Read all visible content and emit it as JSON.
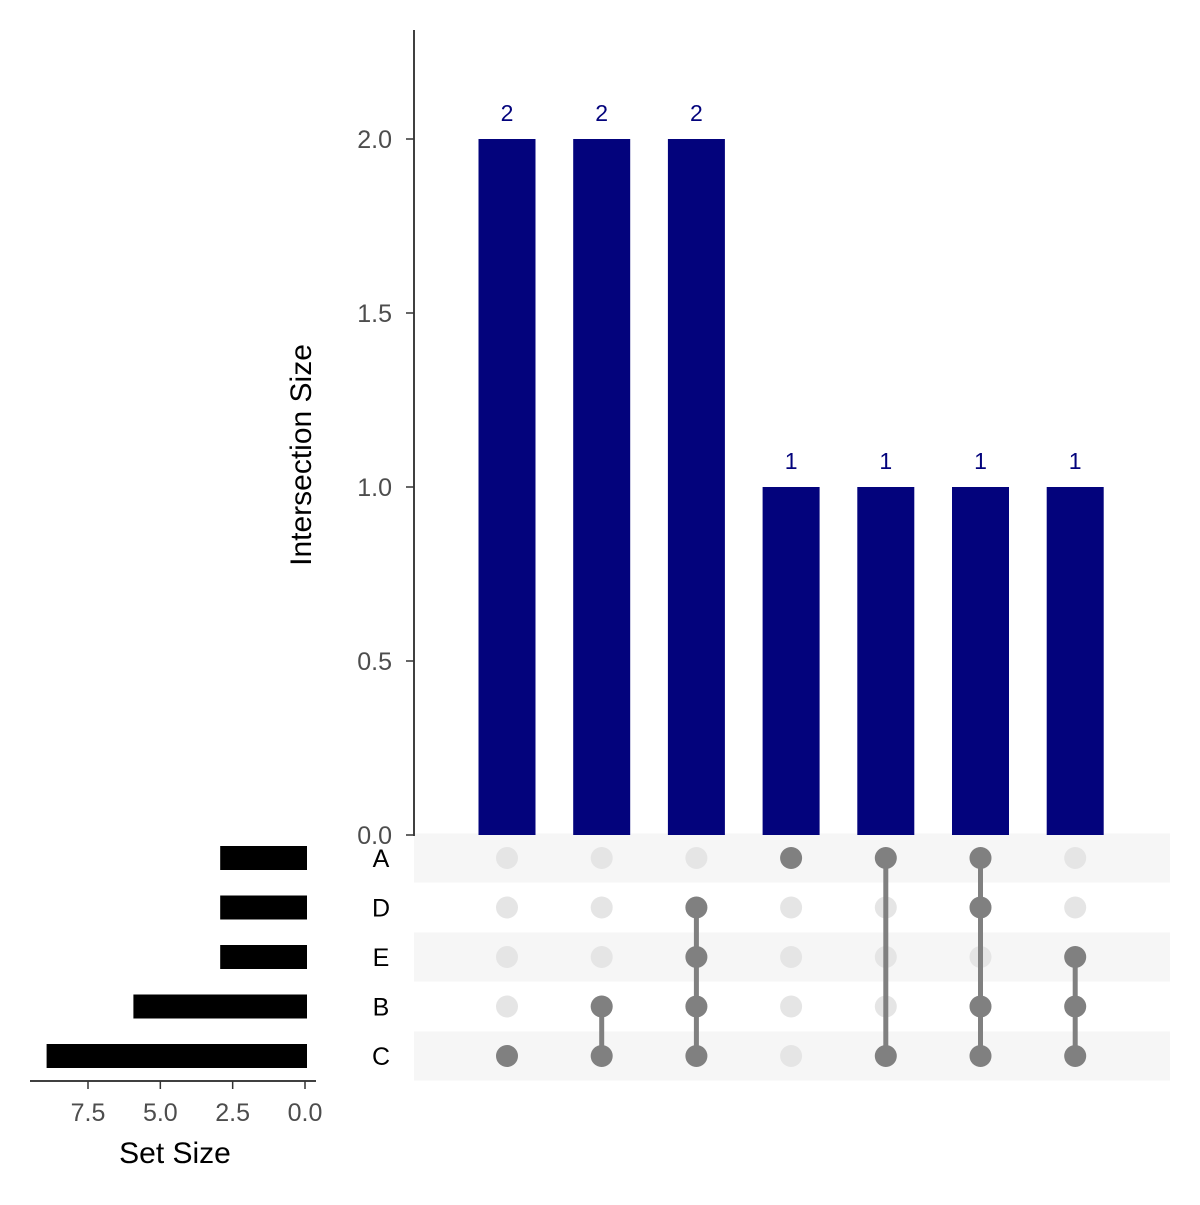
{
  "chart_data": {
    "type": "bar",
    "subtype": "upset",
    "ylabel": "Intersection Size",
    "ylim": [
      0,
      2.3
    ],
    "yticks": [
      "0.0",
      "0.5",
      "1.0",
      "1.5",
      "2.0"
    ],
    "ytick_values": [
      0,
      0.5,
      1.0,
      1.5,
      2.0
    ],
    "sets": [
      "A",
      "D",
      "E",
      "B",
      "C"
    ],
    "intersections": [
      {
        "members": [
          "C"
        ],
        "size": 2,
        "label": "2"
      },
      {
        "members": [
          "B",
          "C"
        ],
        "size": 2,
        "label": "2"
      },
      {
        "members": [
          "D",
          "E",
          "B",
          "C"
        ],
        "size": 2,
        "label": "2"
      },
      {
        "members": [
          "A"
        ],
        "size": 1,
        "label": "1"
      },
      {
        "members": [
          "A",
          "C"
        ],
        "size": 1,
        "label": "1"
      },
      {
        "members": [
          "A",
          "D",
          "B",
          "C"
        ],
        "size": 1,
        "label": "1"
      },
      {
        "members": [
          "E",
          "B",
          "C"
        ],
        "size": 1,
        "label": "1"
      }
    ],
    "set_sizes": {
      "xlabel": "Set Size",
      "values": [
        3,
        3,
        3,
        6,
        9
      ],
      "xticks": [
        "7.5",
        "5.0",
        "2.5",
        "0.0"
      ],
      "xtick_values": [
        7.5,
        5.0,
        2.5,
        0.0
      ]
    },
    "colors": {
      "bar": "#03037c",
      "label": "#03037c",
      "set_bar": "#000000",
      "dot_active": "#808080",
      "dot_inactive": "#e5e5e5",
      "stripe": "#f6f6f6"
    }
  }
}
